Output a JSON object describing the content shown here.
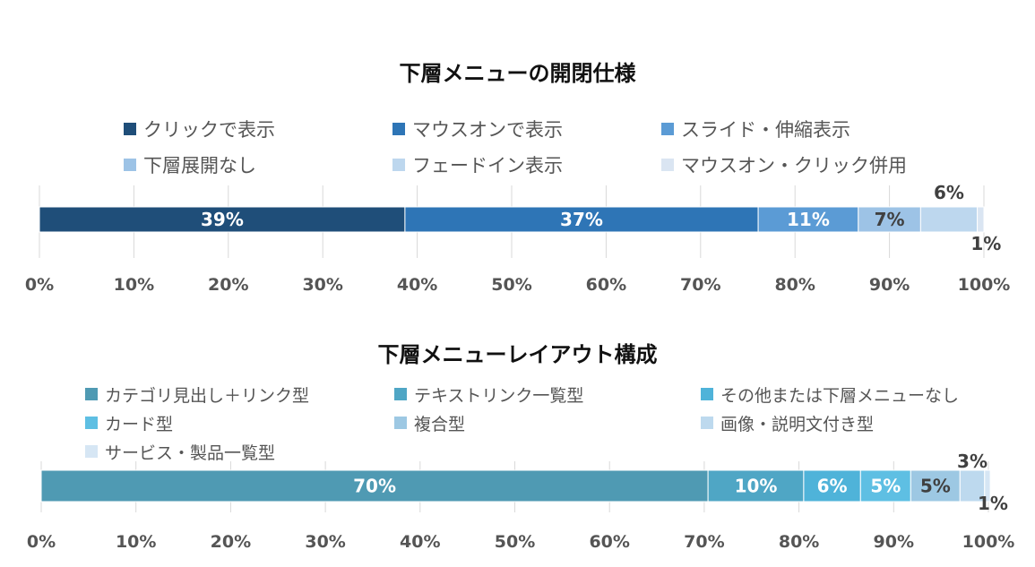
{
  "chart_data": [
    {
      "type": "bar",
      "orientation": "horizontal",
      "stacked": true,
      "title": "下層メニューの開閉仕様",
      "legend_position": "top",
      "grid": true,
      "xlim": [
        0,
        100
      ],
      "x_ticks": [
        "0%",
        "10%",
        "20%",
        "30%",
        "40%",
        "50%",
        "60%",
        "70%",
        "80%",
        "90%",
        "100%"
      ],
      "series": [
        {
          "name": "クリックで表示",
          "value": 38.7,
          "label": "39%",
          "color": "#1f4e79",
          "label_color": "#ffffff"
        },
        {
          "name": "マウスオンで表示",
          "value": 37.4,
          "label": "37%",
          "color": "#2e75b6",
          "label_color": "#ffffff"
        },
        {
          "name": "スライド・伸縮表示",
          "value": 10.6,
          "label": "11%",
          "color": "#5b9bd5",
          "label_color": "#ffffff"
        },
        {
          "name": "下層展開なし",
          "value": 6.6,
          "label": "7%",
          "color": "#9dc3e6",
          "label_color": "#404040"
        },
        {
          "name": "フェードイン表示",
          "value": 6.0,
          "label": "6%",
          "color": "#bdd7ee",
          "label_color": "#404040"
        },
        {
          "name": "マウスオン・クリック併用",
          "value": 0.7,
          "label": "1%",
          "color": "#dae5f2",
          "label_color": "#404040"
        }
      ]
    },
    {
      "type": "bar",
      "orientation": "horizontal",
      "stacked": true,
      "title": "下層メニューレイアウト構成",
      "legend_position": "top",
      "grid": true,
      "xlim": [
        0,
        100
      ],
      "x_ticks": [
        "0%",
        "10%",
        "20%",
        "30%",
        "40%",
        "50%",
        "60%",
        "70%",
        "80%",
        "90%",
        "100%"
      ],
      "series": [
        {
          "name": "カテゴリ見出し＋リンク型",
          "value": 70.4,
          "label": "70%",
          "color": "#4f9ab3",
          "label_color": "#ffffff"
        },
        {
          "name": "テキストリンク一覧型",
          "value": 10.1,
          "label": "10%",
          "color": "#4fa6c5",
          "label_color": "#ffffff"
        },
        {
          "name": "その他または下層メニューなし",
          "value": 6.0,
          "label": "6%",
          "color": "#4fb3d9",
          "label_color": "#ffffff"
        },
        {
          "name": "カード型",
          "value": 5.3,
          "label": "5%",
          "color": "#5ebfe3",
          "label_color": "#ffffff"
        },
        {
          "name": "複合型",
          "value": 5.2,
          "label": "5%",
          "color": "#9dc8e3",
          "label_color": "#404040"
        },
        {
          "name": "画像・説明文付き型",
          "value": 2.6,
          "label": "3%",
          "color": "#bdd9ee",
          "label_color": "#404040"
        },
        {
          "name": "サービス・製品一覧型",
          "value": 0.6,
          "label": "1%",
          "color": "#d6e6f4",
          "label_color": "#404040"
        }
      ]
    }
  ]
}
